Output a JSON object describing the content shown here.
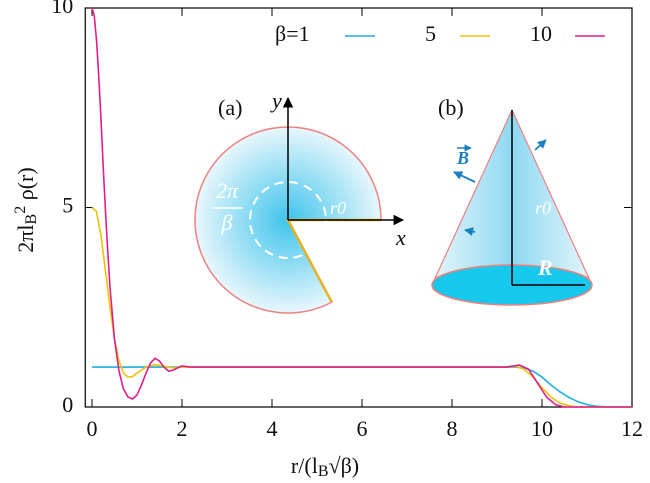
{
  "chart_data": {
    "type": "line",
    "xlabel": "r/(l_B√β)",
    "ylabel": "2πl_B^2 ρ(r)",
    "xlim": [
      -0.15,
      12
    ],
    "ylim": [
      0,
      10
    ],
    "xticks": [
      0,
      2,
      4,
      6,
      8,
      10,
      12
    ],
    "yticks": [
      0,
      5,
      10
    ],
    "legend": "upper right",
    "series": [
      {
        "name": "β=1",
        "color": "#1ab0e0",
        "x": [
          0,
          9.4,
          9.6,
          9.8,
          10,
          10.2,
          10.4,
          10.6,
          10.8,
          11,
          11.2,
          11.5,
          12
        ],
        "values": [
          1,
          1,
          0.98,
          0.9,
          0.75,
          0.55,
          0.38,
          0.24,
          0.13,
          0.06,
          0.02,
          0,
          0
        ]
      },
      {
        "name": "5",
        "color": "#f0c20a",
        "x": [
          0,
          0.1,
          0.2,
          0.3,
          0.4,
          0.5,
          0.6,
          0.7,
          0.8,
          0.9,
          1.0,
          1.2,
          1.4,
          1.6,
          1.8,
          2.0,
          9.0,
          9.4,
          9.6,
          9.8,
          10.0,
          10.2,
          10.4,
          10.6,
          10.8,
          12
        ],
        "values": [
          5,
          4.9,
          4.3,
          3.4,
          2.5,
          1.7,
          1.15,
          0.85,
          0.75,
          0.76,
          0.85,
          1.0,
          1.06,
          1.02,
          0.98,
          1.0,
          1.0,
          1.02,
          0.95,
          0.75,
          0.48,
          0.25,
          0.1,
          0.03,
          0,
          0
        ]
      },
      {
        "name": "10",
        "color": "#e0208a",
        "x": [
          0,
          0.05,
          0.1,
          0.15,
          0.2,
          0.25,
          0.3,
          0.35,
          0.4,
          0.5,
          0.6,
          0.7,
          0.8,
          0.9,
          1.0,
          1.1,
          1.2,
          1.3,
          1.4,
          1.5,
          1.6,
          1.7,
          1.8,
          1.9,
          2.0,
          2.2,
          9.2,
          9.5,
          9.7,
          9.9,
          10.1,
          10.3,
          10.5,
          12
        ],
        "values": [
          10,
          9.8,
          9.2,
          8.3,
          7.2,
          6.0,
          4.9,
          3.9,
          3.0,
          1.7,
          0.9,
          0.45,
          0.25,
          0.2,
          0.3,
          0.55,
          0.85,
          1.1,
          1.22,
          1.15,
          1.0,
          0.9,
          0.92,
          0.98,
          1.03,
          1.0,
          1.0,
          1.05,
          0.95,
          0.6,
          0.25,
          0.06,
          0,
          0
        ]
      }
    ]
  },
  "insets": {
    "a": {
      "label": "(a)",
      "y_axis": "y",
      "x_axis": "x",
      "angle_num": "2π",
      "angle_den": "β",
      "radius": "r0"
    },
    "b": {
      "label": "(b)",
      "field": "B",
      "slant": "r0",
      "base_radius": "R"
    }
  }
}
